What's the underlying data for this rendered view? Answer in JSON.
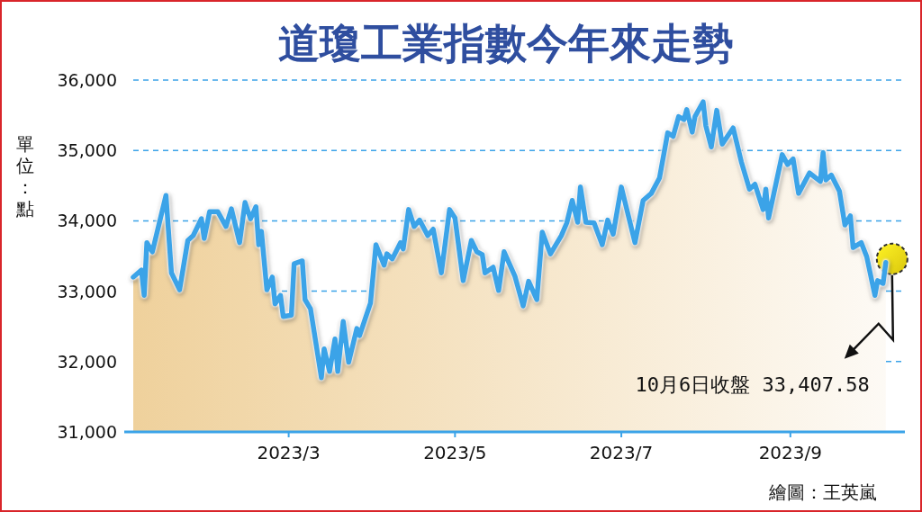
{
  "chart_data": {
    "type": "area",
    "title": "道瓊工業指數今年來走勢",
    "ylabel": "單位：點",
    "x": [
      "2023-01-03",
      "2023-01-06",
      "2023-01-07",
      "2023-01-08",
      "2023-01-10",
      "2023-01-15",
      "2023-01-17",
      "2023-01-20",
      "2023-01-23",
      "2023-01-25",
      "2023-01-28",
      "2023-01-29",
      "2023-01-31",
      "2023-02-03",
      "2023-02-06",
      "2023-02-08",
      "2023-02-11",
      "2023-02-13",
      "2023-02-15",
      "2023-02-17",
      "2023-02-18",
      "2023-02-19",
      "2023-02-21",
      "2023-02-23",
      "2023-02-24",
      "2023-02-26",
      "2023-02-27",
      "2023-03-02",
      "2023-03-03",
      "2023-03-06",
      "2023-03-07",
      "2023-03-09",
      "2023-03-13",
      "2023-03-14",
      "2023-03-16",
      "2023-03-18",
      "2023-03-19",
      "2023-03-21",
      "2023-03-23",
      "2023-03-26",
      "2023-03-27",
      "2023-03-31",
      "2023-04-02",
      "2023-04-05",
      "2023-04-06",
      "2023-04-08",
      "2023-04-11",
      "2023-04-12",
      "2023-04-14",
      "2023-04-16",
      "2023-04-18",
      "2023-04-21",
      "2023-04-23",
      "2023-04-26",
      "2023-04-29",
      "2023-05-01",
      "2023-05-04",
      "2023-05-07",
      "2023-05-09",
      "2023-05-11",
      "2023-05-12",
      "2023-05-15",
      "2023-05-17",
      "2023-05-19",
      "2023-05-23",
      "2023-05-26",
      "2023-05-28",
      "2023-05-31",
      "2023-06-02",
      "2023-06-05",
      "2023-06-09",
      "2023-06-11",
      "2023-06-13",
      "2023-06-15",
      "2023-06-16",
      "2023-06-18",
      "2023-06-21",
      "2023-06-24",
      "2023-06-26",
      "2023-06-28",
      "2023-07-01",
      "2023-07-06",
      "2023-07-09",
      "2023-07-12",
      "2023-07-15",
      "2023-07-18",
      "2023-07-20",
      "2023-07-22",
      "2023-07-24",
      "2023-07-25",
      "2023-07-27",
      "2023-07-28",
      "2023-07-31",
      "2023-08-01",
      "2023-08-03",
      "2023-08-05",
      "2023-08-07",
      "2023-08-11",
      "2023-08-14",
      "2023-08-17",
      "2023-08-19",
      "2023-08-22",
      "2023-08-23",
      "2023-08-24",
      "2023-08-29",
      "2023-08-31",
      "2023-09-02",
      "2023-09-04",
      "2023-09-08",
      "2023-09-12",
      "2023-09-13",
      "2023-09-14",
      "2023-09-16",
      "2023-09-19",
      "2023-09-21",
      "2023-09-23",
      "2023-09-24",
      "2023-09-27",
      "2023-09-29",
      "2023-10-02",
      "2023-10-03",
      "2023-10-05",
      "2023-10-06"
    ],
    "series": [
      {
        "color": "#3ba3e8",
        "values": [
          33200,
          33300,
          32940,
          33690,
          33560,
          34360,
          33260,
          33020,
          33720,
          33790,
          34030,
          33750,
          34130,
          34130,
          33920,
          34170,
          33690,
          34260,
          34030,
          34200,
          33660,
          33850,
          33020,
          33200,
          32820,
          32940,
          32640,
          32660,
          33390,
          33430,
          32880,
          32750,
          31770,
          32180,
          31860,
          32320,
          31860,
          32570,
          31990,
          32470,
          32370,
          32830,
          33660,
          33370,
          33530,
          33460,
          33690,
          33600,
          34160,
          33920,
          34010,
          33790,
          33880,
          33260,
          34160,
          34040,
          33150,
          33720,
          33560,
          33520,
          33260,
          33340,
          33010,
          33560,
          33210,
          32790,
          33140,
          32880,
          33840,
          33530,
          33790,
          33970,
          34290,
          33980,
          34480,
          33980,
          33970,
          33660,
          34010,
          33810,
          34480,
          33690,
          34290,
          34390,
          34610,
          35250,
          35200,
          35480,
          35440,
          35580,
          35260,
          35480,
          35690,
          35350,
          35050,
          35570,
          35090,
          35320,
          34840,
          34450,
          34520,
          34160,
          34450,
          34040,
          34940,
          34800,
          34880,
          34390,
          34680,
          34560,
          34970,
          34580,
          34650,
          34420,
          33940,
          34070,
          33620,
          33690,
          33490,
          32940,
          33150,
          33110,
          33407.58
        ]
      }
    ],
    "xlim": [
      "2023-01-03",
      "2023-10-13"
    ],
    "xticks": [
      {
        "value": "2023-03-01",
        "label": "2023/3"
      },
      {
        "value": "2023-05-01",
        "label": "2023/5"
      },
      {
        "value": "2023-07-01",
        "label": "2023/7"
      },
      {
        "value": "2023-09-01",
        "label": "2023/9"
      }
    ],
    "ylim": [
      31000,
      36000
    ],
    "yticks": [
      {
        "value": 31000,
        "label": "31,000"
      },
      {
        "value": 32000,
        "label": "32,000"
      },
      {
        "value": 33000,
        "label": "33,000"
      },
      {
        "value": 34000,
        "label": "34,000"
      },
      {
        "value": 35000,
        "label": "35,000"
      },
      {
        "value": 36000,
        "label": "36,000"
      }
    ],
    "grid": "y",
    "annotations": [
      "10月6日收盤 33,407.58",
      "繪圖：王英嵐"
    ]
  }
}
